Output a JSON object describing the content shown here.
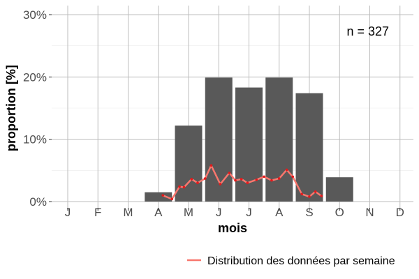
{
  "chart_data": {
    "type": "bar",
    "xlabel": "mois",
    "ylabel": "proportion [%]",
    "annotation": "n = 327",
    "categories": [
      "J",
      "F",
      "M",
      "A",
      "M",
      "J",
      "J",
      "A",
      "S",
      "O",
      "N",
      "D"
    ],
    "values": [
      0,
      0,
      0,
      1.5,
      12.2,
      19.9,
      18.3,
      19.9,
      17.4,
      3.9,
      0,
      0
    ],
    "ylim": [
      0,
      31
    ],
    "yticks": [
      0,
      10,
      20,
      30
    ],
    "ytick_labels": [
      "0%",
      "10%",
      "20%",
      "30%"
    ],
    "grid": true,
    "bar_color": "#595959",
    "series": [
      {
        "name": "Distribution des données par semaine",
        "type": "line",
        "color": "#f8766d",
        "point_color": "#e31a1c",
        "x": [
          3.15,
          3.45,
          3.7,
          3.85,
          4.1,
          4.3,
          4.55,
          4.75,
          5.05,
          5.35,
          5.55,
          5.75,
          5.95,
          6.25,
          6.5,
          6.75,
          7.0,
          7.25,
          7.45,
          7.75,
          8.0,
          8.2,
          8.4,
          8.65,
          8.9,
          9.15
        ],
        "values": [
          1.0,
          0.4,
          2.4,
          2.3,
          3.6,
          3.0,
          3.7,
          5.8,
          2.8,
          4.6,
          3.4,
          3.6,
          3.0,
          3.5,
          4.0,
          3.4,
          3.7,
          5.1,
          4.0,
          1.2,
          0.8,
          1.6,
          0.9,
          null,
          null,
          null
        ]
      }
    ],
    "legend_position": "bottom-right"
  }
}
